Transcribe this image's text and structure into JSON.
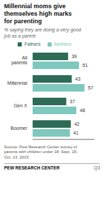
{
  "chart_data": {
    "type": "bar",
    "orientation": "horizontal",
    "title": "Millennial moms give\nthemselves high marks\nfor parenting",
    "subtitle": "% saying they are doing a very good\njob as a parent",
    "categories": [
      "All parents",
      "Millennial",
      "Gen X",
      "Boomer"
    ],
    "series": [
      {
        "name": "Fathers",
        "color": "#2e6b57",
        "values": [
          39,
          43,
          37,
          42
        ]
      },
      {
        "name": "Mothers",
        "color": "#7ec8be",
        "values": [
          51,
          57,
          48,
          41
        ]
      }
    ],
    "xlim": [
      0,
      68
    ],
    "data_labels": true,
    "tick_labels": "y",
    "legend": "top",
    "grid": false,
    "annotations": [
      "Source: Pew Research Center survey of\nparents with children under 18, Sept. 15-\nOct. 13, 2015",
      "PEW RESEARCH CENTER",
      "Q3"
    ]
  }
}
